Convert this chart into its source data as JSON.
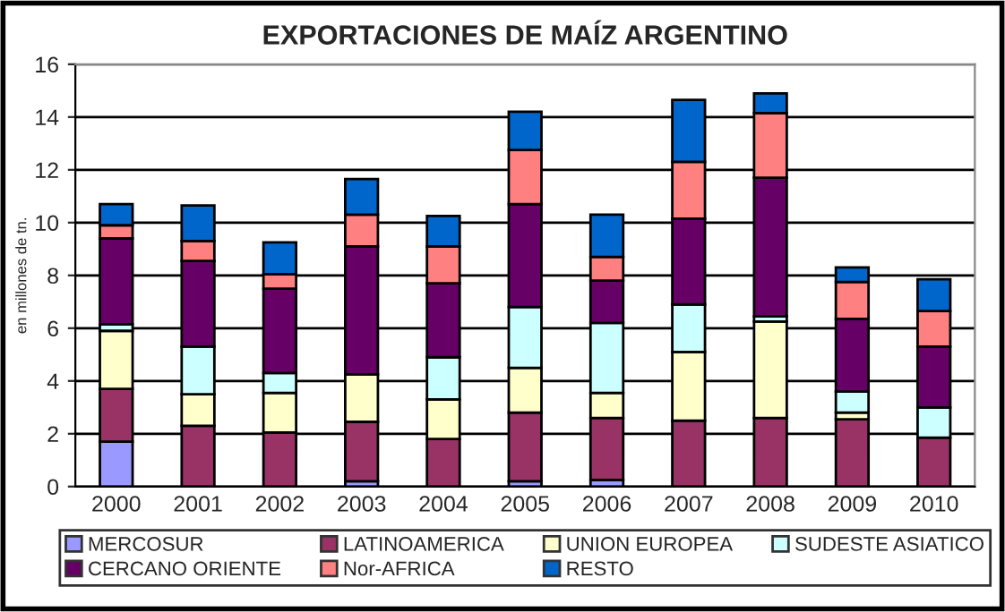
{
  "chart_data": {
    "type": "bar",
    "title": "EXPORTACIONES DE MAÍZ ARGENTINO",
    "ylabel": "en millones de tn.",
    "categories": [
      "2000",
      "2001",
      "2002",
      "2003",
      "2004",
      "2005",
      "2006",
      "2007",
      "2008",
      "2009",
      "2010"
    ],
    "stacked": true,
    "ylim": [
      0,
      16
    ],
    "yticks": [
      0,
      2,
      4,
      6,
      8,
      10,
      12,
      14,
      16
    ],
    "grid": "y",
    "legend": "bottom",
    "series": [
      {
        "name": "MERCOSUR",
        "color": "#9999ff",
        "values": [
          1.7,
          null,
          null,
          0.2,
          0,
          0.2,
          0.25,
          null,
          null,
          0,
          0
        ]
      },
      {
        "name": "LATINOAMERICA",
        "color": "#993366",
        "values": [
          2.0,
          2.3,
          2.05,
          2.25,
          1.8,
          2.6,
          2.35,
          2.5,
          2.6,
          2.55,
          1.85
        ]
      },
      {
        "name": "UNION EUROPEA",
        "color": "#ffffcc",
        "values": [
          2.2,
          1.2,
          1.5,
          1.8,
          1.5,
          1.7,
          0.95,
          2.6,
          3.65,
          0.25,
          null
        ]
      },
      {
        "name": "SUDESTE ASIATICO",
        "color": "#ccffff",
        "values": [
          0.25,
          1.8,
          0.75,
          null,
          1.6,
          2.3,
          2.65,
          1.8,
          0.2,
          0.8,
          1.15
        ]
      },
      {
        "name": "CERCANO ORIENTE",
        "color": "#660066",
        "values": [
          3.25,
          3.25,
          3.2,
          4.85,
          2.8,
          3.9,
          1.6,
          3.25,
          5.25,
          2.75,
          2.3
        ]
      },
      {
        "name": "Nor-AFRICA",
        "color": "#ff8080",
        "values": [
          0.5,
          0.75,
          0.55,
          1.2,
          1.4,
          2.05,
          0.9,
          2.15,
          2.45,
          1.4,
          1.35
        ]
      },
      {
        "name": "RESTO",
        "color": "#0066cc",
        "values": [
          0.8,
          1.35,
          1.2,
          1.35,
          1.15,
          1.45,
          1.6,
          2.35,
          0.75,
          0.55,
          1.2
        ]
      }
    ]
  }
}
